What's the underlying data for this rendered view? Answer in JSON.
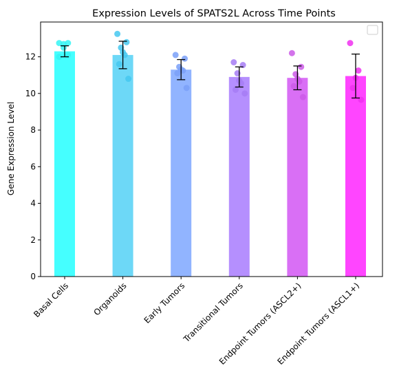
{
  "chart_data": {
    "type": "bar",
    "title": "Expression Levels of SPATS2L Across Time Points",
    "xlabel": "",
    "ylabel": "Gene Expression Level",
    "ylim": [
      0,
      13.9
    ],
    "yticks": [
      0,
      2,
      4,
      6,
      8,
      10,
      12
    ],
    "ytick_labels": [
      "0",
      "2",
      "4",
      "6",
      "8",
      "10",
      "12"
    ],
    "grid": false,
    "legend": "top-right (empty)",
    "categories": [
      "Basal Cells",
      "Organoids",
      "Early Tumors",
      "Transitional Tumors",
      "Endpoint Tumors (ASCL2+)",
      "Endpoint Tumors (ASCL1+)"
    ],
    "series": [
      {
        "values": [
          12.3,
          12.1,
          11.3,
          10.9,
          10.85,
          10.95
        ],
        "errors": [
          0.3,
          0.75,
          0.55,
          0.55,
          0.65,
          1.2
        ],
        "colors": [
          "#45ffff",
          "#6dd8f7",
          "#91b4ff",
          "#b58ffe",
          "#d96ff5",
          "#ff45ff"
        ],
        "point_colors": [
          "#35f5f5",
          "#45c8f0",
          "#7aa0f8",
          "#a67cf5",
          "#cb5be8",
          "#f030f0"
        ],
        "points": [
          [
            12.0,
            12.1,
            12.5,
            12.7,
            12.75,
            12.75
          ],
          [
            13.25,
            12.8,
            12.5,
            12.25,
            12.1,
            11.6,
            10.8
          ],
          [
            12.1,
            11.9,
            11.45,
            11.3,
            11.25,
            11.1,
            10.3
          ],
          [
            11.7,
            11.55,
            11.1,
            10.7,
            10.55,
            10.2,
            10.0
          ],
          [
            12.2,
            11.45,
            11.05,
            10.8,
            10.65,
            10.4,
            9.8
          ],
          [
            12.75,
            11.25,
            10.85,
            10.3,
            9.65
          ]
        ]
      }
    ]
  }
}
